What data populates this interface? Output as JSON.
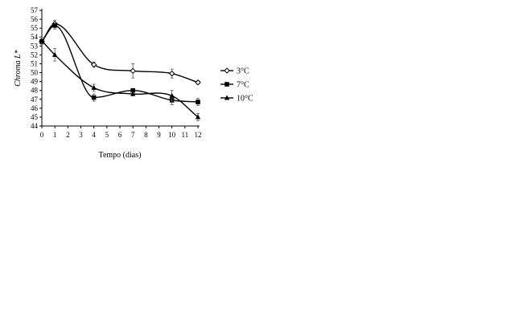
{
  "chart_data": {
    "type": "line",
    "title": "",
    "xlabel": "Tempo (dias)",
    "ylabel": "Chroma L*",
    "xlim": [
      0,
      12
    ],
    "ylim": [
      44,
      57
    ],
    "x_ticks": [
      0,
      1,
      2,
      3,
      4,
      5,
      6,
      7,
      8,
      9,
      10,
      11,
      12
    ],
    "y_ticks": [
      44,
      45,
      46,
      47,
      48,
      49,
      50,
      51,
      52,
      53,
      54,
      55,
      56,
      57
    ],
    "grid": false,
    "legend_position": "right",
    "smooth": true,
    "series": [
      {
        "name": "3°C",
        "marker": "diamond-open",
        "x": [
          0,
          1,
          4,
          7,
          10,
          12
        ],
        "y": [
          53.5,
          55.5,
          50.9,
          50.2,
          49.9,
          48.9
        ],
        "error": [
          0.3,
          0.4,
          0.3,
          0.8,
          0.5,
          0.2
        ]
      },
      {
        "name": "7°C",
        "marker": "square",
        "x": [
          0,
          1,
          4,
          7,
          10,
          12
        ],
        "y": [
          53.5,
          55.3,
          47.2,
          48.0,
          46.9,
          46.7
        ],
        "error": [
          0.3,
          0.4,
          0.4,
          0.2,
          0.5,
          0.4
        ]
      },
      {
        "name": "10°C",
        "marker": "triangle",
        "x": [
          0,
          1,
          4,
          7,
          10,
          12
        ],
        "y": [
          53.6,
          52.0,
          48.3,
          47.6,
          47.4,
          45.0
        ],
        "error": [
          0.4,
          0.7,
          0.4,
          0.2,
          0.6,
          0.4
        ]
      }
    ]
  }
}
